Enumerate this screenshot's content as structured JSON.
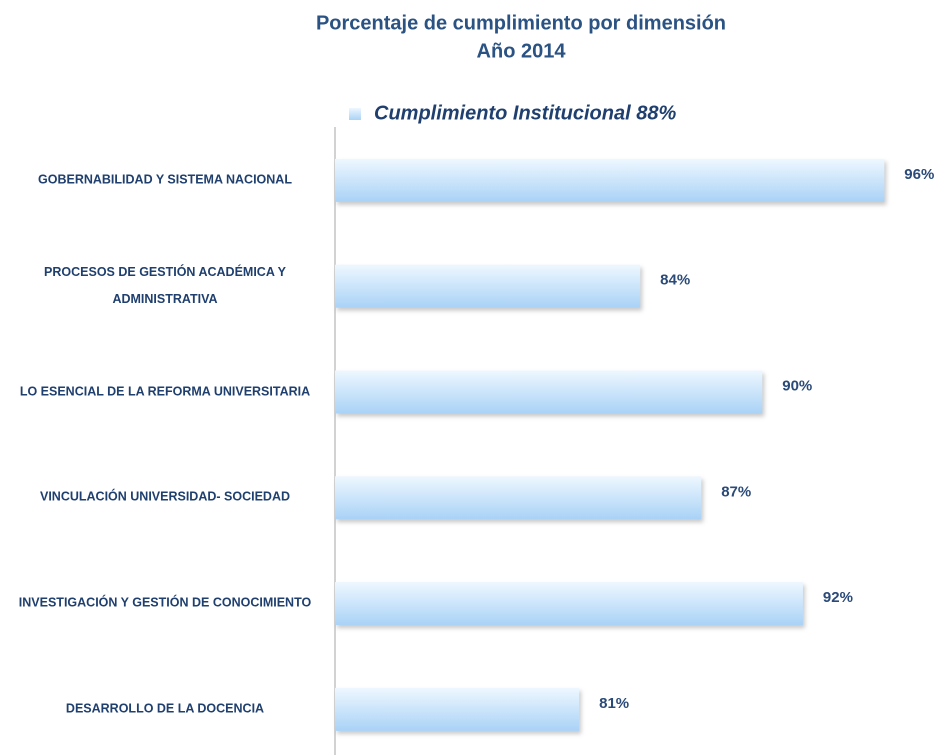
{
  "chart_data": {
    "type": "barh",
    "title": "Porcentaje de cumplimiento por dimensión",
    "subtitle": "Año 2014",
    "categories": [
      "GOBERNABILIDAD Y SISTEMA NACIONAL",
      "PROCESOS DE GESTIÓN ACADÉMICA Y ADMINISTRATIVA",
      "LO ESENCIAL DE LA REFORMA UNIVERSITARIA",
      "VINCULACIÓN UNIVERSIDAD- SOCIEDAD",
      "INVESTIGACIÓN Y GESTIÓN DE CONOCIMIENTO",
      "DESARROLLO DE LA DOCENCIA"
    ],
    "series": [
      {
        "name": "Cumplimiento Institucional 88%",
        "color": "#a9d2f6",
        "values": [
          96,
          84,
          90,
          87,
          92,
          81
        ],
        "value_labels": [
          "96%",
          "84%",
          "90%",
          "87%",
          "92%",
          "81%"
        ]
      }
    ],
    "xlim": [
      69,
      98
    ],
    "legend": "top"
  }
}
